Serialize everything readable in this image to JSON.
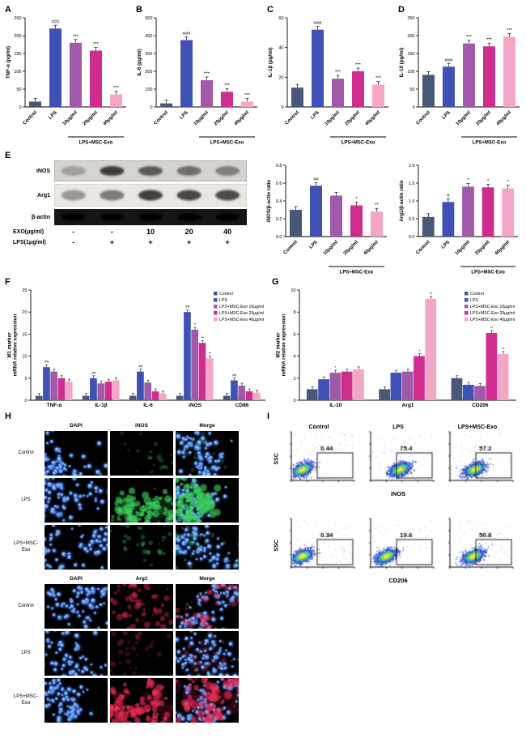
{
  "panels": {
    "A": "A",
    "B": "B",
    "C": "C",
    "D": "D",
    "E": "E",
    "F": "F",
    "G": "G",
    "H": "H",
    "I": "I"
  },
  "colors": {
    "series": [
      "#4a5878",
      "#3f51b5",
      "#a05aa8",
      "#cf2d8e",
      "#f4a6c6"
    ],
    "axis": "#000000"
  },
  "chart_data": [
    {
      "id": "A",
      "type": "bar",
      "ylabel": "TNF-α (pg/ml)",
      "ylim": [
        0,
        250
      ],
      "yticks": [
        0,
        50,
        100,
        150,
        200,
        250
      ],
      "ydec": 0,
      "categories": [
        "Control",
        "LPS",
        "10μg/ml",
        "20μg/ml",
        "40μg/ml"
      ],
      "values": [
        15,
        220,
        180,
        158,
        35
      ],
      "sig": [
        "",
        "###",
        "***",
        "***",
        "***"
      ],
      "rotate_x": true,
      "group_label": "LPS+MSC-Exo",
      "group_span": [
        2,
        4
      ]
    },
    {
      "id": "B",
      "type": "bar",
      "ylabel": "IL-6 (pg/ml)",
      "ylim": [
        0,
        500
      ],
      "yticks": [
        0,
        100,
        200,
        300,
        400,
        500
      ],
      "ydec": 0,
      "categories": [
        "Control",
        "LPS",
        "10μg/ml",
        "20μg/ml",
        "40μg/ml"
      ],
      "values": [
        20,
        375,
        150,
        85,
        30
      ],
      "sig": [
        "",
        "###",
        "***",
        "***",
        "***"
      ],
      "rotate_x": true,
      "group_label": "LPS+MSC-Exo",
      "group_span": [
        2,
        4
      ]
    },
    {
      "id": "C",
      "type": "bar",
      "ylabel": "IL-1β (pg/ml)",
      "ylim": [
        0,
        60
      ],
      "yticks": [
        0,
        20,
        40,
        60
      ],
      "ydec": 0,
      "categories": [
        "Control",
        "LPS",
        "10μg/ml",
        "20μg/ml",
        "40μg/ml"
      ],
      "values": [
        13,
        52,
        19,
        24,
        15
      ],
      "sig": [
        "",
        "###",
        "***",
        "***",
        "***"
      ],
      "rotate_x": true,
      "group_label": "LPS+MSC-Exo",
      "group_span": [
        2,
        4
      ]
    },
    {
      "id": "D",
      "type": "bar",
      "ylabel": "IL-10 (pg/ml)",
      "ylim": [
        0,
        250
      ],
      "yticks": [
        0,
        50,
        100,
        150,
        200,
        250
      ],
      "ydec": 0,
      "categories": [
        "Control",
        "LPS",
        "10μg/ml",
        "20μg/ml",
        "40μg/ml"
      ],
      "values": [
        90,
        113,
        178,
        170,
        197
      ],
      "sig": [
        "",
        "###",
        "***",
        "***",
        "***"
      ],
      "rotate_x": true,
      "group_label": "LPS+MSC-Exo",
      "group_span": [
        2,
        4
      ]
    },
    {
      "id": "E1",
      "type": "bar",
      "ylabel": "iNOS/β-actin ratio",
      "ylim": [
        0,
        0.8
      ],
      "yticks": [
        0,
        0.2,
        0.4,
        0.6,
        0.8
      ],
      "ydec": 1,
      "categories": [
        "Control",
        "LPS",
        "10μg/ml",
        "20μg/ml",
        "40μg/ml"
      ],
      "values": [
        0.3,
        0.57,
        0.46,
        0.35,
        0.28
      ],
      "sig": [
        "",
        "##",
        "",
        "*",
        "**"
      ],
      "rotate_x": true,
      "group_label": "LPS+MSC-Exo",
      "group_span": [
        2,
        4
      ]
    },
    {
      "id": "E2",
      "type": "bar",
      "ylabel": "Arg1/β-actin ratio",
      "ylim": [
        0,
        2.0
      ],
      "yticks": [
        0,
        0.5,
        1.0,
        1.5,
        2.0
      ],
      "ydec": 1,
      "categories": [
        "Control",
        "LPS",
        "10μg/ml",
        "20μg/ml",
        "40μg/ml"
      ],
      "values": [
        0.55,
        0.97,
        1.4,
        1.38,
        1.35
      ],
      "sig": [
        "",
        "#",
        "*",
        "*",
        "*"
      ],
      "rotate_x": true,
      "group_label": "LPS+MSC-Exo",
      "group_span": [
        2,
        4
      ]
    },
    {
      "id": "F",
      "type": "grouped-bar",
      "ylabel_lines": [
        "M1 marker",
        "mRNA relative expression"
      ],
      "ylim": [
        0,
        25
      ],
      "yticks": [
        0,
        5,
        10,
        15,
        20,
        25
      ],
      "ydec": 0,
      "categories": [
        "TNF-α",
        "IL-1β",
        "IL-6",
        "iNOS",
        "CD86"
      ],
      "legend": true,
      "series": [
        {
          "name": "Control",
          "values": [
            1,
            1,
            1,
            1,
            1
          ],
          "sig": [
            "",
            "",
            "",
            "",
            ""
          ]
        },
        {
          "name": "LPS",
          "values": [
            7.5,
            5,
            6.5,
            20,
            4.5
          ],
          "sig": [
            "##",
            "##",
            "##",
            "##",
            "##"
          ]
        },
        {
          "name": "LPS+MSC-Exo 10μg/ml",
          "values": [
            6.5,
            3.8,
            4,
            16,
            3.3
          ],
          "sig": [
            "",
            "",
            "",
            "**",
            ""
          ]
        },
        {
          "name": "LPS+MSC-Exo 20μg/ml",
          "values": [
            5,
            4.2,
            2,
            13,
            2
          ],
          "sig": [
            "",
            "",
            "",
            "**",
            ""
          ]
        },
        {
          "name": "LPS+MSC-Exo 40μg/ml",
          "values": [
            4.2,
            4.5,
            1.5,
            9.5,
            1.7
          ],
          "sig": [
            "",
            "",
            "",
            "**",
            ""
          ]
        }
      ]
    },
    {
      "id": "G",
      "type": "grouped-bar",
      "ylabel_lines": [
        "M2 marker",
        "mRNA relative expression"
      ],
      "ylim": [
        0,
        10
      ],
      "yticks": [
        0,
        2,
        4,
        6,
        8,
        10
      ],
      "ydec": 0,
      "categories": [
        "IL-10",
        "Arg1",
        "CD206"
      ],
      "legend": true,
      "series": [
        {
          "name": "Control",
          "values": [
            1,
            1,
            2
          ],
          "sig": [
            "",
            "",
            ""
          ]
        },
        {
          "name": "LPS",
          "values": [
            1.9,
            2.5,
            1.4
          ],
          "sig": [
            "",
            "",
            ""
          ]
        },
        {
          "name": "LPS+MSC-Exo 10μg/ml",
          "values": [
            2.5,
            2.6,
            1.3
          ],
          "sig": [
            "*",
            "",
            ""
          ]
        },
        {
          "name": "LPS+MSC-Exo 20μg/ml",
          "values": [
            2.6,
            4.0,
            6.1
          ],
          "sig": [
            "",
            "*",
            "**"
          ]
        },
        {
          "name": "LPS+MSC-Exo 40μg/ml",
          "values": [
            2.8,
            9.2,
            4.2
          ],
          "sig": [
            "",
            "**",
            "**"
          ]
        }
      ]
    }
  ],
  "blot": {
    "rows": [
      {
        "label": "iNOS",
        "bg": "#d6d4d0",
        "band": "#2e2a28",
        "border": "#777777",
        "intensities": [
          0.3,
          0.9,
          0.72,
          0.6,
          0.5
        ],
        "h": 26
      },
      {
        "label": "Arg1",
        "bg": "#eae7e2",
        "band": "#262220",
        "border": "#bbbbbb",
        "intensities": [
          0.4,
          0.55,
          0.85,
          0.82,
          0.8
        ],
        "h": 28
      },
      {
        "label": "β-actin",
        "bg": "#151515",
        "band": "#000000",
        "border": "none",
        "intensities": [
          1,
          1,
          1,
          1,
          1
        ],
        "h": 20
      }
    ],
    "dose_label": "EXO(μg/ml)",
    "dose_values": [
      "-",
      "-",
      "10",
      "20",
      "40"
    ],
    "lps_label": "LPS(1μg/ml)",
    "lps_values": [
      "-",
      "+",
      "+",
      "+",
      "+"
    ]
  },
  "microscopy": {
    "blocks": [
      {
        "headers": [
          "DAPI",
          "iNOS",
          "Merge"
        ],
        "rows": [
          {
            "label": "Control",
            "cells": [
              "dapi",
              "green:0.12",
              "merge-green:0.12"
            ]
          },
          {
            "label": "LPS",
            "cells": [
              "dapi",
              "green:0.85",
              "merge-green:0.85"
            ]
          },
          {
            "label": "LPS+MSC-Exo",
            "cells": [
              "dapi",
              "green:0.25",
              "merge-green:0.25"
            ]
          }
        ]
      },
      {
        "headers": [
          "DAPI",
          "Arg1",
          "Merge"
        ],
        "rows": [
          {
            "label": "Control",
            "cells": [
              "dapi",
              "red:0.5",
              "merge-red:0.5"
            ]
          },
          {
            "label": "LPS",
            "cells": [
              "dapi",
              "red:0.3",
              "merge-red:0.3"
            ]
          },
          {
            "label": "LPS+MSC-Exo",
            "cells": [
              "dapi",
              "red:0.9",
              "merge-red:0.9"
            ]
          }
        ]
      }
    ]
  },
  "flow": {
    "ylabel": "SSC",
    "rows": [
      {
        "titles": [
          "Control",
          "LPS",
          "LPS+MSC-Exo"
        ],
        "xlabel": "iNOS",
        "gates": [
          "0.44",
          "75.4",
          "57.2"
        ]
      },
      {
        "titles": null,
        "xlabel": "CD206",
        "gates": [
          "0.34",
          "19.6",
          "50.8"
        ]
      }
    ]
  }
}
